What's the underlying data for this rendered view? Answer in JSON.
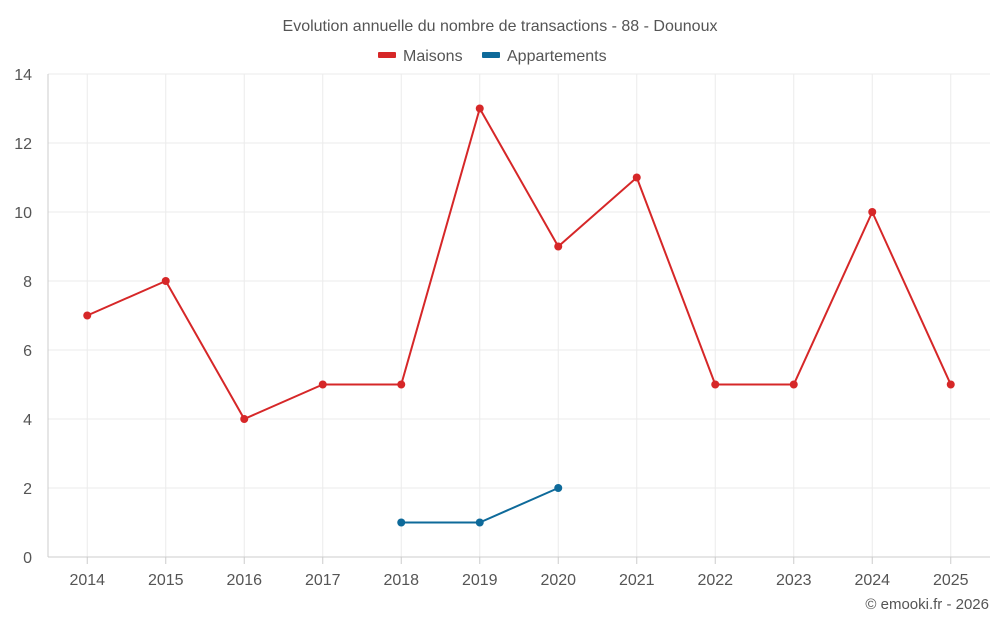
{
  "chart_data": {
    "type": "line",
    "title": "Evolution annuelle du nombre de transactions - 88 - Dounoux",
    "categories": [
      "2014",
      "2015",
      "2016",
      "2017",
      "2018",
      "2019",
      "2020",
      "2021",
      "2022",
      "2023",
      "2024",
      "2025"
    ],
    "series": [
      {
        "name": "Maisons",
        "color": "#d62728",
        "values": [
          7,
          8,
          4,
          5,
          5,
          13,
          9,
          11,
          5,
          5,
          10,
          5
        ]
      },
      {
        "name": "Appartements",
        "color": "#0e6a9a",
        "values": [
          null,
          null,
          null,
          null,
          1,
          1,
          2,
          null,
          null,
          null,
          null,
          null
        ]
      }
    ],
    "ylim": [
      0,
      14
    ],
    "yticks": [
      0,
      2,
      4,
      6,
      8,
      10,
      12,
      14
    ],
    "xlabel": "",
    "ylabel": "",
    "grid": true,
    "legend_position": "top-center"
  },
  "credit": "© emooki.fr - 2026"
}
